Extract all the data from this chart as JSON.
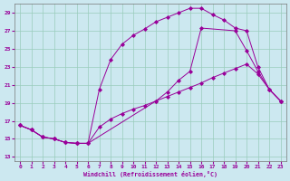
{
  "xlabel": "Windchill (Refroidissement éolien,°C)",
  "bg_color": "#cce8f0",
  "line_color": "#990099",
  "grid_color": "#99ccbb",
  "xlim": [
    -0.5,
    23.5
  ],
  "ylim": [
    12.5,
    30.0
  ],
  "yticks": [
    13,
    15,
    17,
    19,
    21,
    23,
    25,
    27,
    29
  ],
  "xticks": [
    0,
    1,
    2,
    3,
    4,
    5,
    6,
    7,
    8,
    9,
    10,
    11,
    12,
    13,
    14,
    15,
    16,
    17,
    18,
    19,
    20,
    21,
    22,
    23
  ],
  "line1_x": [
    0,
    1,
    2,
    3,
    4,
    5,
    6,
    7,
    8,
    9,
    10,
    11,
    12,
    13,
    14,
    15,
    16,
    17,
    18,
    19,
    20,
    21,
    22,
    23
  ],
  "line1_y": [
    16.5,
    16.0,
    15.2,
    15.0,
    14.6,
    14.5,
    14.5,
    16.3,
    17.2,
    17.8,
    18.3,
    18.7,
    19.2,
    19.7,
    20.2,
    20.7,
    21.2,
    21.8,
    22.3,
    22.8,
    23.3,
    22.2,
    20.5,
    19.2
  ],
  "line2_x": [
    0,
    1,
    2,
    3,
    4,
    5,
    6,
    7,
    8,
    9,
    10,
    11,
    12,
    13,
    14,
    15,
    16,
    17,
    18,
    19,
    20,
    21,
    22,
    23
  ],
  "line2_y": [
    16.5,
    16.0,
    15.2,
    15.0,
    14.6,
    14.5,
    14.5,
    20.5,
    23.8,
    25.5,
    26.5,
    27.2,
    28.0,
    28.5,
    29.0,
    29.5,
    29.5,
    28.8,
    28.2,
    27.3,
    27.0,
    23.0,
    20.5,
    19.2
  ],
  "line3_x": [
    0,
    1,
    2,
    3,
    4,
    5,
    6,
    12,
    13,
    14,
    15,
    16,
    19,
    20,
    21,
    22,
    23
  ],
  "line3_y": [
    16.5,
    16.0,
    15.2,
    15.0,
    14.6,
    14.5,
    14.5,
    19.2,
    20.2,
    21.5,
    22.5,
    27.3,
    27.0,
    24.8,
    22.5,
    20.5,
    19.2
  ]
}
